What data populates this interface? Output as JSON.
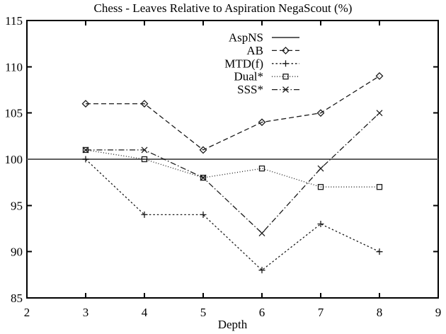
{
  "window": {
    "background_color": "#ffffff",
    "text_color": "#000000",
    "axis_color": "#000000"
  },
  "chart_data": {
    "type": "line",
    "title": "Chess - Leaves Relative to Aspiration NegaScout (%)",
    "xlabel": "Depth",
    "ylabel": "",
    "xlim": [
      2,
      9
    ],
    "ylim": [
      85,
      115
    ],
    "xticks": [
      2,
      3,
      4,
      5,
      6,
      7,
      8,
      9
    ],
    "yticks": [
      85,
      90,
      95,
      100,
      105,
      110,
      115
    ],
    "grid": false,
    "legend_position": "top-center-inside",
    "legend_order": [
      "AspNS",
      "AB",
      "MTD(f)",
      "Dual*",
      "SSS*"
    ],
    "series": [
      {
        "name": "AspNS",
        "x": [
          2,
          9
        ],
        "values": [
          100,
          100
        ],
        "marker": "none",
        "line_style": "solid",
        "color": "#606060"
      },
      {
        "name": "AB",
        "x": [
          3,
          4,
          5,
          6,
          7,
          8
        ],
        "values": [
          106,
          106,
          101,
          104,
          105,
          109
        ],
        "marker": "diamond",
        "line_style": "dashed",
        "color": "#1a1a1a"
      },
      {
        "name": "MTD(f)",
        "x": [
          3,
          4,
          5,
          6,
          7,
          8
        ],
        "values": [
          100,
          94,
          94,
          88,
          93,
          90
        ],
        "marker": "plus",
        "line_style": "short-dash",
        "color": "#1a1a1a"
      },
      {
        "name": "Dual*",
        "x": [
          3,
          4,
          5,
          6,
          7,
          8
        ],
        "values": [
          101,
          100,
          98,
          99,
          97,
          97
        ],
        "marker": "square",
        "line_style": "dotted",
        "color": "#1a1a1a"
      },
      {
        "name": "SSS*",
        "x": [
          3,
          4,
          5,
          6,
          7,
          8
        ],
        "values": [
          101,
          101,
          98,
          92,
          99,
          105
        ],
        "marker": "x",
        "line_style": "dash-dot",
        "color": "#1a1a1a"
      }
    ]
  }
}
